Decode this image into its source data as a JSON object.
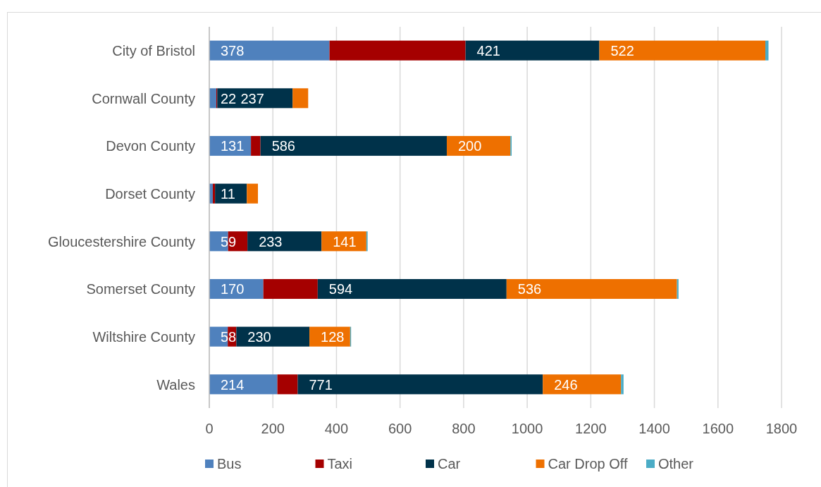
{
  "chart_data": {
    "type": "bar",
    "orientation": "horizontal",
    "stacked": true,
    "categories": [
      "City of Bristol",
      "Cornwall County",
      "Devon County",
      "Dorset County",
      "Gloucestershire County",
      "Somerset County",
      "Wiltshire County",
      "Wales"
    ],
    "series": [
      {
        "name": "Bus",
        "color": "#4f81bd",
        "values": [
          378,
          22,
          131,
          11,
          59,
          170,
          58,
          214
        ],
        "value_labels": [
          "378",
          "22",
          "131",
          "11",
          "59",
          "170",
          "58",
          "214"
        ]
      },
      {
        "name": "Taxi",
        "color": "#a50000",
        "values": [
          428,
          3,
          30,
          7,
          61,
          171,
          27,
          64
        ]
      },
      {
        "name": "Car",
        "color": "#00324a",
        "values": [
          421,
          237,
          586,
          100,
          233,
          594,
          230,
          771
        ],
        "value_labels": [
          "421",
          "237",
          "586",
          null,
          "233",
          "594",
          "230",
          "771"
        ]
      },
      {
        "name": "Car Drop Off",
        "color": "#ee7000",
        "values": [
          522,
          49,
          200,
          35,
          141,
          536,
          128,
          246
        ],
        "value_labels": [
          "522",
          null,
          "200",
          null,
          "141",
          "536",
          "128",
          "246"
        ]
      },
      {
        "name": "Other",
        "color": "#4bacc6",
        "values": [
          10,
          0,
          4,
          0,
          4,
          5,
          3,
          8
        ]
      }
    ],
    "xlim": [
      0,
      1800
    ],
    "xticks": [
      0,
      200,
      400,
      600,
      800,
      1000,
      1200,
      1400,
      1600,
      1800
    ],
    "grid": "x",
    "legend": "bottom"
  }
}
